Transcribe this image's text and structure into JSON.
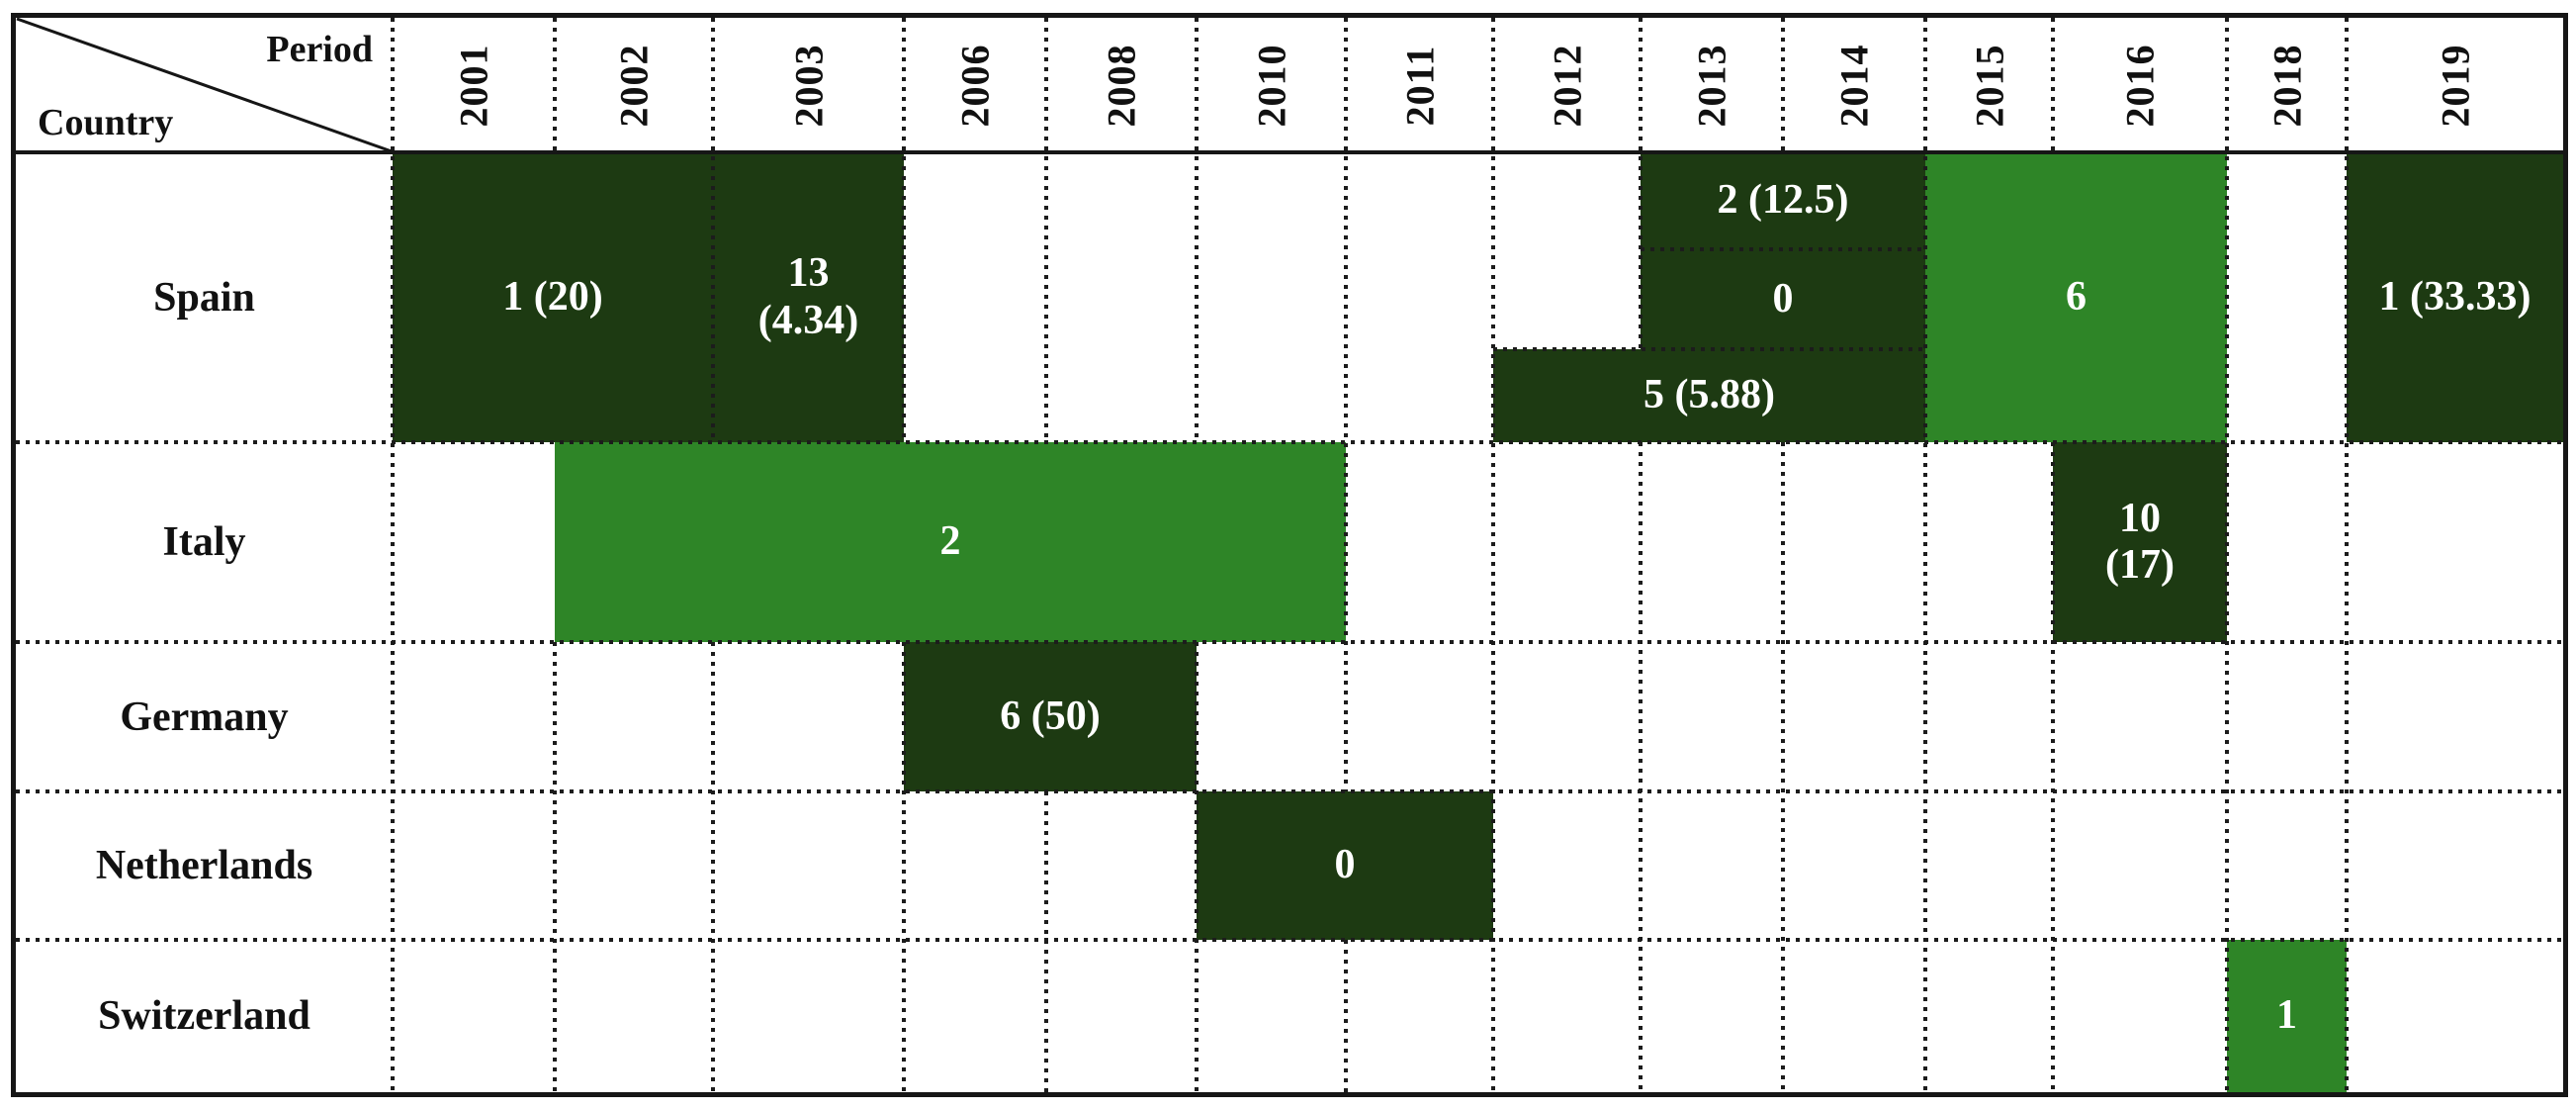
{
  "figure": {
    "corner": {
      "period_label": "Period",
      "country_label": "Country"
    },
    "years": [
      "2001",
      "2002",
      "2003",
      "2006",
      "2008",
      "2010",
      "2011",
      "2012",
      "2013",
      "2014",
      "2015",
      "2016",
      "2018",
      "2019"
    ],
    "countries": [
      "Spain",
      "Italy",
      "Germany",
      "Netherlands",
      "Switzerland"
    ],
    "colors": {
      "dark_green": "#1d3a12",
      "light_green": "#2e8527",
      "cell_text": "#ffffff",
      "grid": "#1c1c1c",
      "border": "#161616"
    }
  },
  "cells": [
    {
      "country": "Spain",
      "band": "full",
      "col_start": "2001",
      "col_end": "2002",
      "period": "2001–2002",
      "value": "1 (20)",
      "shade": "dark"
    },
    {
      "country": "Spain",
      "band": "full",
      "col_start": "2003",
      "col_end": "2003",
      "period": "2003",
      "value": "13\n(4.34)",
      "shade": "dark"
    },
    {
      "country": "Spain",
      "band": "top",
      "col_start": "2013",
      "col_end": "2014",
      "period": "2013–2014",
      "value": "2 (12.5)",
      "shade": "dark"
    },
    {
      "country": "Spain",
      "band": "middle",
      "col_start": "2013",
      "col_end": "2014",
      "period": "2013–2014",
      "value": "0",
      "shade": "dark"
    },
    {
      "country": "Spain",
      "band": "bottom",
      "col_start": "2012",
      "col_end": "2014",
      "period": "2012–2014",
      "value": "5 (5.88)",
      "shade": "dark"
    },
    {
      "country": "Spain",
      "band": "full",
      "col_start": "2015",
      "col_end": "2016",
      "period": "2015–2016",
      "value": "6",
      "shade": "light"
    },
    {
      "country": "Spain",
      "band": "full",
      "col_start": "2019",
      "col_end": "2019",
      "period": "2019",
      "value": "1 (33.33)",
      "shade": "dark"
    },
    {
      "country": "Italy",
      "band": "full",
      "col_start": "2002",
      "col_end": "2010",
      "period": "2002–2010",
      "value": "2",
      "shade": "light"
    },
    {
      "country": "Italy",
      "band": "full",
      "col_start": "2016",
      "col_end": "2016",
      "period": "2016",
      "value": "10\n(17)",
      "shade": "dark"
    },
    {
      "country": "Germany",
      "band": "full",
      "col_start": "2006",
      "col_end": "2008",
      "period": "2006–2008",
      "value": "6 (50)",
      "shade": "dark"
    },
    {
      "country": "Netherlands",
      "band": "full",
      "col_start": "2010",
      "col_end": "2011",
      "period": "2010–2011",
      "value": "0",
      "shade": "dark"
    },
    {
      "country": "Switzerland",
      "band": "full",
      "col_start": "2018",
      "col_end": "2018",
      "period": "2018",
      "value": "1",
      "shade": "light"
    }
  ],
  "chart_data": {
    "type": "heatmap",
    "title": "",
    "x": [
      "2001",
      "2002",
      "2003",
      "2006",
      "2008",
      "2010",
      "2011",
      "2012",
      "2013",
      "2014",
      "2015",
      "2016",
      "2018",
      "2019"
    ],
    "y": [
      "Spain",
      "Italy",
      "Germany",
      "Netherlands",
      "Switzerland"
    ],
    "legend_position": "none",
    "grid": "dotted",
    "cells": [
      {
        "country": "Spain",
        "period": "2001–2002",
        "count": 1,
        "percent": 20,
        "label": "1 (20)",
        "shade": "dark"
      },
      {
        "country": "Spain",
        "period": "2003",
        "count": 13,
        "percent": 4.34,
        "label": "13 (4.34)",
        "shade": "dark"
      },
      {
        "country": "Spain",
        "period": "2013–2014",
        "count": 2,
        "percent": 12.5,
        "label": "2 (12.5)",
        "shade": "dark"
      },
      {
        "country": "Spain",
        "period": "2013–2014",
        "count": 0,
        "percent": null,
        "label": "0",
        "shade": "dark"
      },
      {
        "country": "Spain",
        "period": "2012–2014",
        "count": 5,
        "percent": 5.88,
        "label": "5 (5.88)",
        "shade": "dark"
      },
      {
        "country": "Spain",
        "period": "2015–2016",
        "count": 6,
        "percent": null,
        "label": "6",
        "shade": "light"
      },
      {
        "country": "Spain",
        "period": "2019",
        "count": 1,
        "percent": 33.33,
        "label": "1 (33.33)",
        "shade": "dark"
      },
      {
        "country": "Italy",
        "period": "2002–2010",
        "count": 2,
        "percent": null,
        "label": "2",
        "shade": "light"
      },
      {
        "country": "Italy",
        "period": "2016",
        "count": 10,
        "percent": 17,
        "label": "10 (17)",
        "shade": "dark"
      },
      {
        "country": "Germany",
        "period": "2006–2008",
        "count": 6,
        "percent": 50,
        "label": "6 (50)",
        "shade": "dark"
      },
      {
        "country": "Netherlands",
        "period": "2010–2011",
        "count": 0,
        "percent": null,
        "label": "0",
        "shade": "dark"
      },
      {
        "country": "Switzerland",
        "period": "2018",
        "count": 1,
        "percent": null,
        "label": "1",
        "shade": "light"
      }
    ]
  }
}
